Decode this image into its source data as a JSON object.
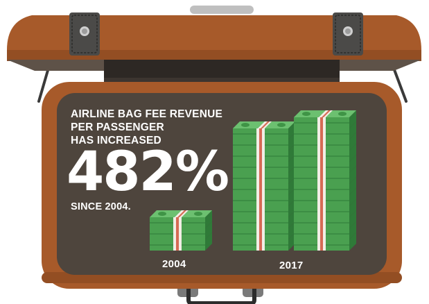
{
  "infographic": {
    "headline_lines": [
      "AIRLINE BAG FEE REVENUE",
      "PER PASSENGER",
      "HAS INCREASED"
    ],
    "percent": "482%",
    "since": "SINCE 2004.",
    "stacks": [
      {
        "year": "2004",
        "bundles": 3
      },
      {
        "year": "2017",
        "bundles": 11
      },
      {
        "year": "2017",
        "bundles": 12
      }
    ],
    "year_labels": [
      "2004",
      "2017"
    ]
  },
  "colors": {
    "suitcase_brown": "#a75a2a",
    "interior": "#4e453d",
    "money_green": "#4aa050",
    "band": "#f2eee6"
  }
}
